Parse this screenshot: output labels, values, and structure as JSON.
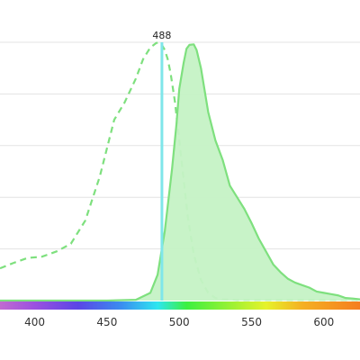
{
  "chart_data": {
    "type": "area",
    "xlabel": "",
    "ylabel": "",
    "xlim": [
      376,
      625
    ],
    "ylim": [
      0,
      100
    ],
    "grid": true,
    "x_ticks": [
      {
        "value": 400,
        "label": "400"
      },
      {
        "value": 450,
        "label": "450"
      },
      {
        "value": 500,
        "label": "500"
      },
      {
        "value": 550,
        "label": "550"
      },
      {
        "value": 600,
        "label": "600"
      }
    ],
    "y_gridlines": [
      20,
      40,
      60,
      80,
      100
    ],
    "laser_line": {
      "value": 488,
      "label": "488",
      "color": "#7fe6ea"
    },
    "spectrum_bar": {
      "stops": [
        {
          "value": 376,
          "color": "#c06bd0"
        },
        {
          "value": 400,
          "color": "#9b50e0"
        },
        {
          "value": 430,
          "color": "#5a45e6"
        },
        {
          "value": 460,
          "color": "#3a8df0"
        },
        {
          "value": 485,
          "color": "#2ee6f0"
        },
        {
          "value": 505,
          "color": "#3cf040"
        },
        {
          "value": 560,
          "color": "#e6f22a"
        },
        {
          "value": 585,
          "color": "#f5b022"
        },
        {
          "value": 625,
          "color": "#f57e20"
        }
      ]
    },
    "series": [
      {
        "style": "dashed",
        "color": "#7ee07e",
        "x": [
          376,
          385,
          395,
          405,
          415,
          425,
          435,
          445,
          455,
          462,
          470,
          475,
          480,
          484,
          486,
          488,
          490,
          492,
          494,
          497,
          500,
          503,
          506,
          510,
          515,
          520,
          525,
          530,
          540,
          560,
          580,
          600,
          625
        ],
        "values": [
          12.5,
          14.5,
          16.5,
          17.0,
          19.0,
          22.0,
          31.0,
          48.0,
          70.0,
          76.5,
          86.0,
          93.5,
          98.0,
          99.7,
          100.0,
          99.0,
          97.0,
          93.5,
          88.0,
          77.0,
          62.0,
          47.0,
          32.0,
          18.0,
          8.0,
          3.0,
          1.0,
          0.5,
          0.3,
          0.3,
          0.3,
          0.3,
          0.3
        ]
      },
      {
        "style": "filled",
        "color": "#7ee07e",
        "fill": "#c5f2c5",
        "x": [
          376,
          450,
          470,
          480,
          485,
          490,
          495,
          498,
          500,
          503,
          505,
          507,
          510,
          512,
          515,
          520,
          525,
          530,
          535,
          540,
          545,
          550,
          555,
          560,
          565,
          570,
          575,
          580,
          585,
          590,
          595,
          600,
          605,
          610,
          615,
          620,
          625
        ],
        "values": [
          0,
          0,
          0.3,
          3.0,
          10.0,
          27.0,
          51.0,
          68.0,
          82.0,
          92.0,
          97.5,
          99.0,
          99.2,
          97.0,
          90.0,
          73.0,
          62.0,
          54.5,
          44.5,
          40.0,
          35.5,
          30.0,
          24.0,
          19.0,
          14.0,
          11.0,
          8.5,
          7.0,
          6.0,
          5.0,
          3.5,
          3.0,
          2.5,
          2.0,
          1.0,
          0.8,
          0.5
        ]
      }
    ]
  }
}
